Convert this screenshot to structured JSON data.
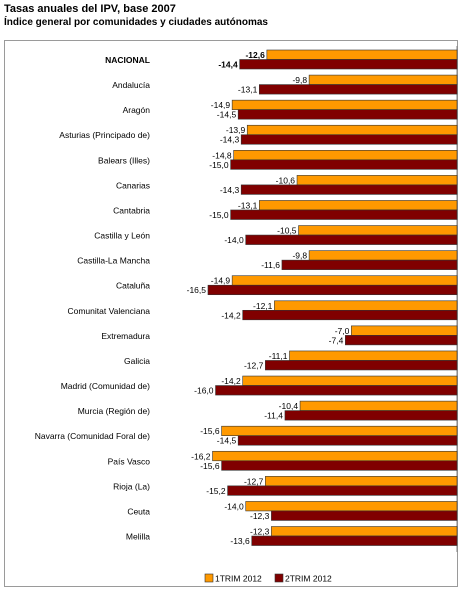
{
  "chart_data": {
    "type": "bar",
    "orientation": "horizontal",
    "title": "Tasas anuales del IPV, base 2007",
    "subtitle": "Índice general por comunidades y ciudades autónomas",
    "categories": [
      "NACIONAL",
      "Andalucía",
      "Aragón",
      "Asturias (Principado de)",
      "Balears (Illes)",
      "Canarias",
      "Cantabria",
      "Castilla y León",
      "Castilla-La Mancha",
      "Cataluña",
      "Comunitat Valenciana",
      "Extremadura",
      "Galicia",
      "Madrid (Comunidad de)",
      "Murcia (Región de)",
      "Navarra (Comunidad Foral de)",
      "País Vasco",
      "Rioja (La)",
      "Ceuta",
      "Melilla"
    ],
    "series": [
      {
        "name": "1TRIM 2012",
        "color": "#FF9900",
        "values": [
          -12.6,
          -9.8,
          -14.9,
          -13.9,
          -14.8,
          -10.6,
          -13.1,
          -10.5,
          -9.8,
          -14.9,
          -12.1,
          -7.0,
          -11.1,
          -14.2,
          -10.4,
          -15.6,
          -16.2,
          -12.7,
          -14.0,
          -12.3
        ],
        "labels": [
          "-12,6",
          "-9,8",
          "-14,9",
          "-13,9",
          "-14,8",
          "-10,6",
          "-13,1",
          "-10,5",
          "-9,8",
          "-14,9",
          "-12,1",
          "-7,0",
          "-11,1",
          "-14,2",
          "-10,4",
          "-15,6",
          "-16,2",
          "-12,7",
          "-14,0",
          "-12,3"
        ]
      },
      {
        "name": "2TRIM 2012",
        "color": "#800000",
        "values": [
          -14.4,
          -13.1,
          -14.5,
          -14.3,
          -15.0,
          -14.3,
          -15.0,
          -14.0,
          -11.6,
          -16.5,
          -14.2,
          -7.4,
          -12.7,
          -16.0,
          -11.4,
          -14.5,
          -15.6,
          -15.2,
          -12.3,
          -13.6
        ],
        "labels": [
          "-14,4",
          "-13,1",
          "-14,5",
          "-14,3",
          "-15,0",
          "-14,3",
          "-15,0",
          "-14,0",
          "-11,6",
          "-16,5",
          "-14,2",
          "-7,4",
          "-12,7",
          "-16,0",
          "-11,4",
          "-14,5",
          "-15,6",
          "-15,2",
          "-12,3",
          "-13,6"
        ]
      }
    ],
    "bold_categories": [
      "NACIONAL"
    ],
    "xlim": [
      -16.5,
      0
    ],
    "grid": false,
    "legend_position": "bottom"
  }
}
